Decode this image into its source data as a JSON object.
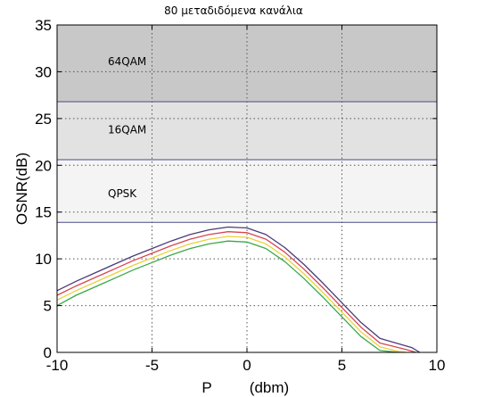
{
  "chart_data": {
    "type": "line",
    "title": "80 μεταδιδόμενα κανάλια",
    "xlabel": "P",
    "xlabel_unit": "(dbm)",
    "ylabel": "OSNR(dB)",
    "xlim": [
      -10,
      10
    ],
    "ylim": [
      0,
      35
    ],
    "xticks": [
      -10,
      -5,
      0,
      5,
      10
    ],
    "yticks": [
      0,
      5,
      10,
      15,
      20,
      25,
      30,
      35
    ],
    "grid": true,
    "bands": [
      {
        "label": "QPSK",
        "from": 13.9,
        "to": 20.6,
        "color": "#f4f4f4"
      },
      {
        "label": "16QAM",
        "from": 20.6,
        "to": 26.8,
        "color": "#e2e2e2"
      },
      {
        "label": "64QAM",
        "from": 26.8,
        "to": 35,
        "color": "#c8c8c8"
      }
    ],
    "thresholds": [
      13.9,
      20.6,
      26.8
    ],
    "x": [
      -10,
      -9,
      -8,
      -7,
      -6,
      -5,
      -4,
      -3,
      -2,
      -1,
      0,
      1,
      2,
      3,
      4,
      5,
      6,
      7,
      8,
      8.4,
      8.7,
      8.9,
      9.1
    ],
    "series": [
      {
        "color": "#4b3a7a",
        "values": [
          6.6,
          7.6,
          8.5,
          9.4,
          10.3,
          11.1,
          11.9,
          12.6,
          13.1,
          13.4,
          13.3,
          12.6,
          11.2,
          9.4,
          7.4,
          5.3,
          3.2,
          1.5,
          null,
          null,
          0.5,
          null,
          0
        ]
      },
      {
        "color": "#d64550",
        "values": [
          6.1,
          7.1,
          8.0,
          8.9,
          9.8,
          10.6,
          11.4,
          12.1,
          12.6,
          12.9,
          12.8,
          12.1,
          10.7,
          8.9,
          6.9,
          4.8,
          2.7,
          1.0,
          null,
          0.3,
          null,
          0,
          null
        ]
      },
      {
        "color": "#e8d23a",
        "values": [
          5.6,
          6.6,
          7.5,
          8.4,
          9.3,
          10.1,
          10.9,
          11.6,
          12.1,
          12.4,
          12.3,
          11.6,
          10.2,
          8.4,
          6.4,
          4.3,
          2.2,
          0.6,
          0.1,
          0,
          null,
          null,
          null
        ]
      },
      {
        "color": "#3ba84a",
        "values": [
          5.0,
          6.1,
          7.0,
          7.9,
          8.8,
          9.6,
          10.4,
          11.1,
          11.6,
          11.9,
          11.8,
          11.1,
          9.7,
          7.9,
          5.9,
          3.8,
          1.7,
          0.2,
          0,
          null,
          null,
          null,
          null
        ]
      }
    ]
  }
}
